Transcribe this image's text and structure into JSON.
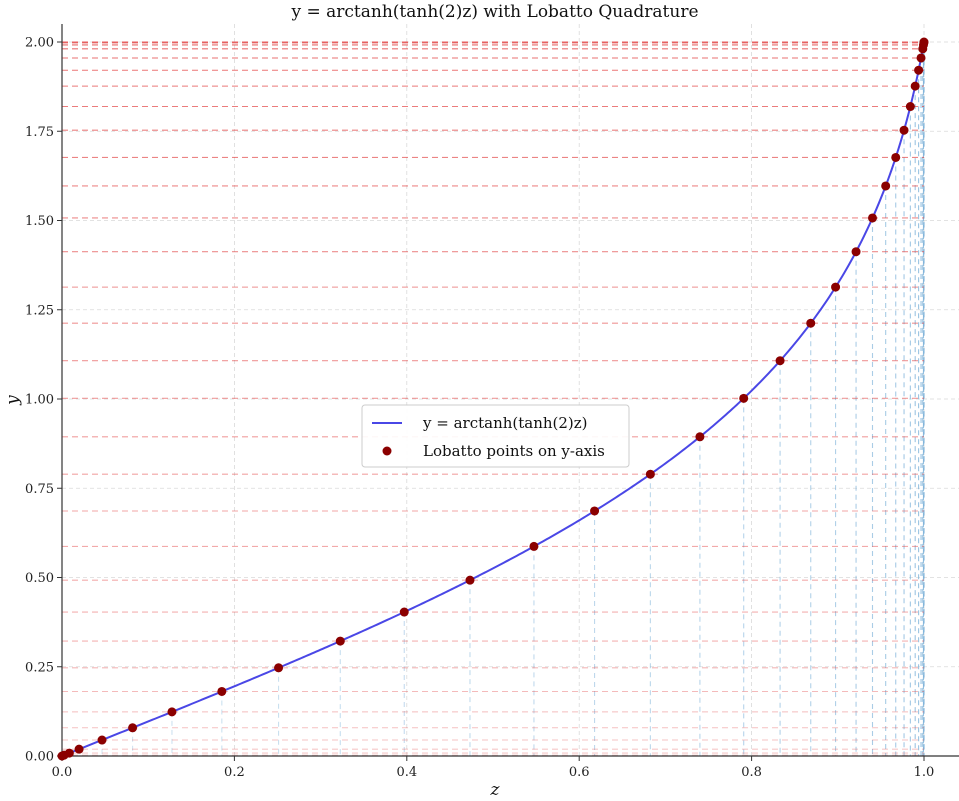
{
  "chart_data": {
    "type": "line",
    "title": "y = arctanh(tanh(2)z) with Lobatto Quadrature",
    "xlabel": "z",
    "ylabel": "y",
    "xlim": [
      0.0,
      1.0
    ],
    "ylim": [
      0.0,
      2.03
    ],
    "x_ticks": [
      "0.0",
      "0.2",
      "0.4",
      "0.6",
      "0.8",
      "1.0"
    ],
    "y_ticks": [
      "0.00",
      "0.25",
      "0.50",
      "0.75",
      "1.00",
      "1.25",
      "1.50",
      "1.75",
      "2.00"
    ],
    "grid": true,
    "legend_position": "center",
    "colors": {
      "curve": "#4a47e6",
      "points": "#8b0000",
      "hlines": "#e34a4a",
      "vlines": "#7ab0d8"
    },
    "series": [
      {
        "name": "y = arctanh(tanh(2)z)",
        "kind": "line",
        "function": "arctanh(tanh(2)*z)",
        "domain": [
          0.0,
          1.0
        ]
      },
      {
        "name": "Lobatto points on y-axis",
        "kind": "scatter",
        "y": [
          0.0,
          0.0023,
          0.0082,
          0.0191,
          0.0448,
          0.0791,
          0.1236,
          0.1807,
          0.2471,
          0.3219,
          0.4033,
          0.4926,
          0.5871,
          0.6863,
          0.7893,
          0.8941,
          1.0019,
          1.1072,
          1.2123,
          1.3134,
          1.4126,
          1.5071,
          1.5967,
          1.6766,
          1.7529,
          1.8193,
          1.8764,
          1.9209,
          1.9552,
          1.9809,
          1.9918,
          1.9977,
          2.0
        ]
      }
    ]
  }
}
